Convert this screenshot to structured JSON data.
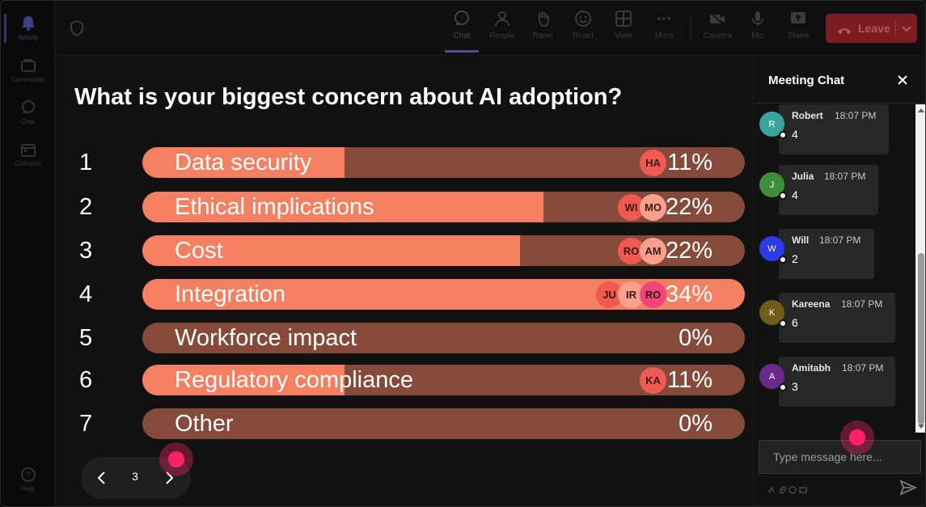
{
  "rail": {
    "items": [
      {
        "label": "Activity"
      },
      {
        "label": "Community"
      },
      {
        "label": "Chat"
      },
      {
        "label": "Calendar"
      }
    ],
    "help_label": "Help"
  },
  "toolbar": {
    "items": [
      {
        "label": "Chat",
        "icon": "chat-icon"
      },
      {
        "label": "People",
        "icon": "people-icon"
      },
      {
        "label": "Raise",
        "icon": "raise-hand-icon"
      },
      {
        "label": "React",
        "icon": "react-icon"
      },
      {
        "label": "View",
        "icon": "view-icon"
      },
      {
        "label": "More",
        "icon": "more-icon"
      },
      {
        "label": "Camera",
        "icon": "camera-icon"
      },
      {
        "label": "Mic",
        "icon": "mic-icon"
      },
      {
        "label": "Share",
        "icon": "share-icon"
      }
    ],
    "leave_label": "Leave"
  },
  "poll": {
    "question": "What is your biggest concern about AI adoption?",
    "options": [
      {
        "num": "1",
        "label": "Data security",
        "percent": "11%",
        "share": 0.11,
        "avatars": [
          "HA"
        ]
      },
      {
        "num": "2",
        "label": "Ethical implications",
        "percent": "22%",
        "share": 0.22,
        "avatars": [
          "WI",
          "MO"
        ]
      },
      {
        "num": "3",
        "label": "Cost",
        "percent": "22%",
        "share": 0.22,
        "avatars": [
          "RO",
          "AM"
        ]
      },
      {
        "num": "4",
        "label": "Integration",
        "percent": "34%",
        "share": 0.34,
        "avatars": [
          "JU",
          "IR",
          "RO"
        ]
      },
      {
        "num": "5",
        "label": "Workforce impact",
        "percent": "0%",
        "share": 0.0,
        "avatars": []
      },
      {
        "num": "6",
        "label": "Regulatory compliance",
        "percent": "11%",
        "share": 0.11,
        "avatars": [
          "KA"
        ]
      },
      {
        "num": "7",
        "label": "Other",
        "percent": "0%",
        "share": 0.0,
        "avatars": []
      }
    ],
    "page": "3"
  },
  "chat": {
    "title": "Meeting Chat",
    "messages": [
      {
        "initial": "R",
        "name": "Robert",
        "time": "18:07 PM",
        "text": "4",
        "color": "#3aa39c"
      },
      {
        "initial": "J",
        "name": "Julia",
        "time": "18:07 PM",
        "text": "4",
        "color": "#3f8f3a"
      },
      {
        "initial": "W",
        "name": "Will",
        "time": "18:07 PM",
        "text": "2",
        "color": "#2c3be8"
      },
      {
        "initial": "K",
        "name": "Kareena",
        "time": "18:07 PM",
        "text": "6",
        "color": "#6e5c18"
      },
      {
        "initial": "A",
        "name": "Amitabh",
        "time": "18:07 PM",
        "text": "3",
        "color": "#6a2a8c"
      }
    ],
    "compose_placeholder": "Type message here..."
  },
  "colors": {
    "bar_track": "#854a3a",
    "bar_fill": "#f47f61",
    "pointer": "#ff1f6a",
    "leave": "#7a1c22"
  }
}
